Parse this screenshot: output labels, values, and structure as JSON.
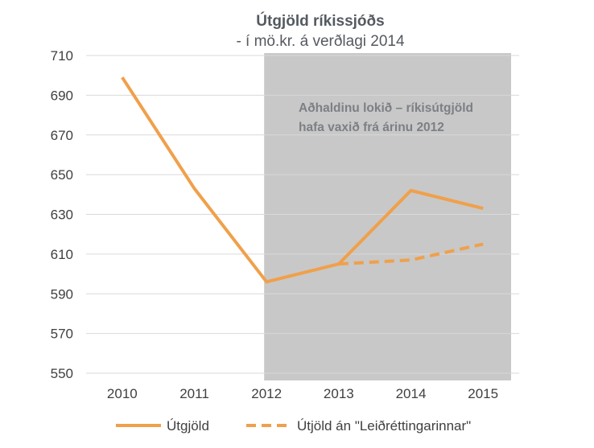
{
  "chart_data": {
    "type": "line",
    "title": "Útgjöld ríkissjóðs",
    "subtitle": "- í mö.kr. á verðlagi 2014",
    "xlabel": "",
    "ylabel": "",
    "categories": [
      "2010",
      "2011",
      "2012",
      "2013",
      "2014",
      "2015"
    ],
    "ylim": [
      550,
      710
    ],
    "yticks": [
      710,
      690,
      670,
      650,
      630,
      610,
      590,
      570,
      550
    ],
    "grid": true,
    "legend_position": "bottom",
    "series": [
      {
        "name": "Útgjöld",
        "style": "solid",
        "color": "#f0a04b",
        "values": [
          699,
          643,
          596,
          605,
          642,
          633
        ]
      },
      {
        "name": "Útjöld án \"Leiðréttingarinnar\"",
        "style": "dashed",
        "color": "#f0a04b",
        "values": [
          null,
          null,
          null,
          605,
          607,
          615
        ]
      }
    ],
    "shaded_region": {
      "from": "2012",
      "to": "2015",
      "color": "#c8c8c8"
    },
    "annotation": {
      "lines": [
        "Aðhaldinu lokið – ríkisútgjöld",
        "hafa vaxið frá árinu 2012"
      ],
      "color": "#7c7f84"
    }
  }
}
